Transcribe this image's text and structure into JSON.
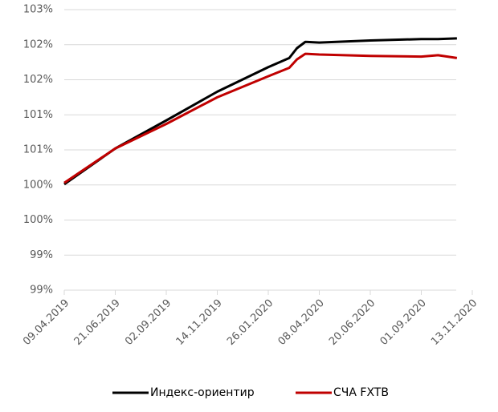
{
  "chart_data": {
    "type": "line",
    "x": [
      "09.04.2019",
      "21.06.2019",
      "02.09.2019",
      "14.11.2019",
      "26.01.2020",
      "25.02.2020",
      "07.03.2020",
      "19.03.2020",
      "08.04.2020",
      "20.06.2020",
      "01.09.2020",
      "25.09.2020",
      "22.10.2020"
    ],
    "series": [
      {
        "name": "Индекс-ориентир",
        "color": "#000000",
        "values": [
          100.26,
          100.77,
          101.17,
          101.58,
          101.93,
          102.06,
          102.2,
          102.29,
          102.28,
          102.31,
          102.33,
          102.33,
          102.34
        ]
      },
      {
        "name": "СЧА FXTB",
        "color": "#c00000",
        "values": [
          100.28,
          100.77,
          101.12,
          101.5,
          101.8,
          101.92,
          102.04,
          102.12,
          102.11,
          102.09,
          102.08,
          102.1,
          102.06
        ]
      }
    ],
    "xlim": [
      "09.04.2019",
      "13.11.2020"
    ],
    "xticks": [
      "09.04.2019",
      "21.06.2019",
      "02.09.2019",
      "14.11.2019",
      "26.01.2020",
      "08.04.2020",
      "20.06.2020",
      "01.09.2020",
      "13.11.2020"
    ],
    "ylim": [
      98.75,
      102.75
    ],
    "yticks": [
      {
        "value": 98.75,
        "label": "99%"
      },
      {
        "value": 99.25,
        "label": "99%"
      },
      {
        "value": 99.75,
        "label": "100%"
      },
      {
        "value": 100.25,
        "label": "100%"
      },
      {
        "value": 100.75,
        "label": "101%"
      },
      {
        "value": 101.25,
        "label": "101%"
      },
      {
        "value": 101.75,
        "label": "102%"
      },
      {
        "value": 102.25,
        "label": "102%"
      },
      {
        "value": 102.75,
        "label": "103%"
      }
    ],
    "grid": true,
    "legend": "bottom"
  }
}
